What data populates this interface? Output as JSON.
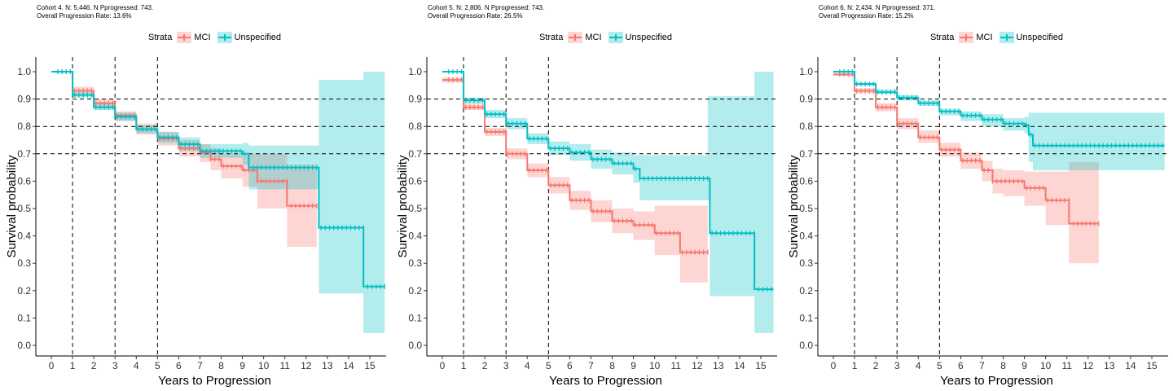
{
  "legend": {
    "title": "Strata",
    "items": [
      {
        "label": "MCI",
        "color": "#F8766D"
      },
      {
        "label": "Unspecified",
        "color": "#00BFC4"
      }
    ]
  },
  "panels": [
    {
      "caption": [
        "Cohort 4. N: 5,446. N Pprogressed: 743.",
        "Overall Progression Rate: 13.6%"
      ]
    },
    {
      "caption": [
        "Cohort 5. N: 2,806. N Pprogressed: 743.",
        "Overall Progression Rate: 26.5%"
      ]
    },
    {
      "caption": [
        "Cohort 6. N: 2,434. N Pprogressed: 371.",
        "Overall Progression Rate: 15.2%"
      ]
    }
  ],
  "chart_data": [
    {
      "type": "line",
      "xlabel": "Years to Progression",
      "ylabel": "Survival probability",
      "xlim": [
        0,
        15.6
      ],
      "ylim": [
        0,
        1
      ],
      "xticks": [
        0,
        1,
        2,
        3,
        4,
        5,
        6,
        7,
        8,
        9,
        10,
        11,
        12,
        13,
        14,
        15
      ],
      "yticks": [
        0.0,
        0.1,
        0.2,
        0.3,
        0.4,
        0.5,
        0.6,
        0.7,
        0.8,
        0.9,
        1.0
      ],
      "reference_lines": {
        "vertical": [
          1,
          3,
          5
        ],
        "horizontal": [
          0.7,
          0.8,
          0.9
        ]
      },
      "series": [
        {
          "name": "MCI",
          "color": "#F8766D",
          "x": [
            0,
            1,
            2,
            3,
            4,
            5,
            6,
            7,
            7.5,
            8,
            9,
            9.7,
            10,
            11.1,
            12.5
          ],
          "y": [
            1.0,
            0.93,
            0.885,
            0.84,
            0.79,
            0.755,
            0.72,
            0.705,
            0.68,
            0.655,
            0.64,
            0.6,
            0.6,
            0.51,
            0.51
          ],
          "lower": [
            1.0,
            0.92,
            0.87,
            0.82,
            0.77,
            0.73,
            0.69,
            0.67,
            0.64,
            0.61,
            0.58,
            0.5,
            0.5,
            0.36,
            0.36
          ],
          "upper": [
            1.0,
            0.945,
            0.9,
            0.855,
            0.81,
            0.78,
            0.75,
            0.735,
            0.72,
            0.7,
            0.7,
            0.7,
            0.7,
            0.66,
            0.66
          ]
        },
        {
          "name": "Unspecified",
          "color": "#00BFC4",
          "x": [
            0,
            1,
            2,
            3,
            4,
            5,
            6,
            7,
            9,
            9.3,
            12.5,
            12.6,
            14.7,
            15.7
          ],
          "y": [
            1.0,
            0.915,
            0.87,
            0.835,
            0.79,
            0.76,
            0.735,
            0.71,
            0.7,
            0.65,
            0.65,
            0.43,
            0.215,
            0.215
          ],
          "lower": [
            1.0,
            0.905,
            0.86,
            0.82,
            0.775,
            0.74,
            0.71,
            0.685,
            0.66,
            0.57,
            0.57,
            0.19,
            0.045,
            0.045
          ],
          "upper": [
            1.0,
            0.925,
            0.885,
            0.85,
            0.805,
            0.78,
            0.76,
            0.735,
            0.74,
            0.73,
            0.73,
            0.97,
            1.0,
            1.0
          ]
        }
      ]
    },
    {
      "type": "line",
      "xlabel": "Years to Progression",
      "ylabel": "Survival probability",
      "xlim": [
        0,
        15.6
      ],
      "ylim": [
        0,
        1
      ],
      "xticks": [
        0,
        1,
        2,
        3,
        4,
        5,
        6,
        7,
        8,
        9,
        10,
        11,
        12,
        13,
        14,
        15
      ],
      "yticks": [
        0.0,
        0.1,
        0.2,
        0.3,
        0.4,
        0.5,
        0.6,
        0.7,
        0.8,
        0.9,
        1.0
      ],
      "reference_lines": {
        "vertical": [
          1,
          3,
          5
        ],
        "horizontal": [
          0.7,
          0.8,
          0.9
        ]
      },
      "series": [
        {
          "name": "MCI",
          "color": "#F8766D",
          "x": [
            0,
            1,
            2,
            3,
            4,
            5,
            6,
            7,
            8,
            9,
            10,
            11,
            11.2,
            12.5
          ],
          "y": [
            0.97,
            0.87,
            0.78,
            0.7,
            0.64,
            0.585,
            0.53,
            0.49,
            0.455,
            0.44,
            0.41,
            0.41,
            0.34,
            0.34
          ],
          "lower": [
            0.96,
            0.86,
            0.765,
            0.68,
            0.615,
            0.555,
            0.495,
            0.45,
            0.41,
            0.385,
            0.33,
            0.33,
            0.23,
            0.23
          ],
          "upper": [
            0.98,
            0.885,
            0.795,
            0.72,
            0.665,
            0.615,
            0.565,
            0.53,
            0.5,
            0.49,
            0.51,
            0.51,
            0.51,
            0.51
          ]
        },
        {
          "name": "Unspecified",
          "color": "#00BFC4",
          "x": [
            0,
            1,
            2,
            3,
            4,
            5,
            6,
            7,
            8,
            9,
            9.3,
            12.5,
            12.6,
            14.7,
            15.6
          ],
          "y": [
            1.0,
            0.895,
            0.845,
            0.81,
            0.755,
            0.72,
            0.705,
            0.68,
            0.665,
            0.645,
            0.61,
            0.61,
            0.41,
            0.205,
            0.205
          ],
          "lower": [
            1.0,
            0.885,
            0.83,
            0.79,
            0.735,
            0.695,
            0.675,
            0.645,
            0.625,
            0.595,
            0.53,
            0.53,
            0.18,
            0.045,
            0.045
          ],
          "upper": [
            1.0,
            0.905,
            0.86,
            0.83,
            0.775,
            0.745,
            0.735,
            0.715,
            0.705,
            0.695,
            0.695,
            0.91,
            0.91,
            1.0,
            1.0
          ]
        }
      ]
    },
    {
      "type": "line",
      "xlabel": "Years to Progression",
      "ylabel": "Survival probability",
      "xlim": [
        0,
        15.6
      ],
      "ylim": [
        0,
        1
      ],
      "xticks": [
        0,
        1,
        2,
        3,
        4,
        5,
        6,
        7,
        8,
        9,
        10,
        11,
        12,
        13,
        14,
        15
      ],
      "yticks": [
        0.0,
        0.1,
        0.2,
        0.3,
        0.4,
        0.5,
        0.6,
        0.7,
        0.8,
        0.9,
        1.0
      ],
      "reference_lines": {
        "vertical": [
          1,
          3,
          5
        ],
        "horizontal": [
          0.7,
          0.8,
          0.9
        ]
      },
      "series": [
        {
          "name": "MCI",
          "color": "#F8766D",
          "x": [
            0,
            1,
            2,
            3,
            4,
            5,
            6,
            7,
            7.5,
            8,
            9,
            10,
            11.1,
            12.5
          ],
          "y": [
            0.99,
            0.93,
            0.87,
            0.81,
            0.76,
            0.715,
            0.675,
            0.64,
            0.6,
            0.6,
            0.575,
            0.53,
            0.445,
            0.445
          ],
          "lower": [
            0.985,
            0.92,
            0.855,
            0.79,
            0.74,
            0.69,
            0.645,
            0.6,
            0.555,
            0.545,
            0.51,
            0.44,
            0.3,
            0.3
          ],
          "upper": [
            0.995,
            0.94,
            0.885,
            0.83,
            0.785,
            0.74,
            0.705,
            0.675,
            0.645,
            0.64,
            0.635,
            0.635,
            0.67,
            0.67
          ]
        },
        {
          "name": "Unspecified",
          "color": "#00BFC4",
          "x": [
            0,
            1,
            2,
            3,
            4,
            5,
            6,
            7,
            8,
            9,
            9.2,
            9.4,
            15.6
          ],
          "y": [
            1.0,
            0.955,
            0.925,
            0.905,
            0.885,
            0.855,
            0.84,
            0.825,
            0.81,
            0.805,
            0.77,
            0.73,
            0.73
          ],
          "lower": [
            1.0,
            0.95,
            0.92,
            0.895,
            0.875,
            0.84,
            0.82,
            0.8,
            0.785,
            0.775,
            0.67,
            0.64,
            0.64
          ],
          "upper": [
            1.0,
            0.96,
            0.935,
            0.915,
            0.895,
            0.865,
            0.855,
            0.845,
            0.83,
            0.835,
            0.85,
            0.85,
            0.85
          ]
        }
      ]
    }
  ]
}
